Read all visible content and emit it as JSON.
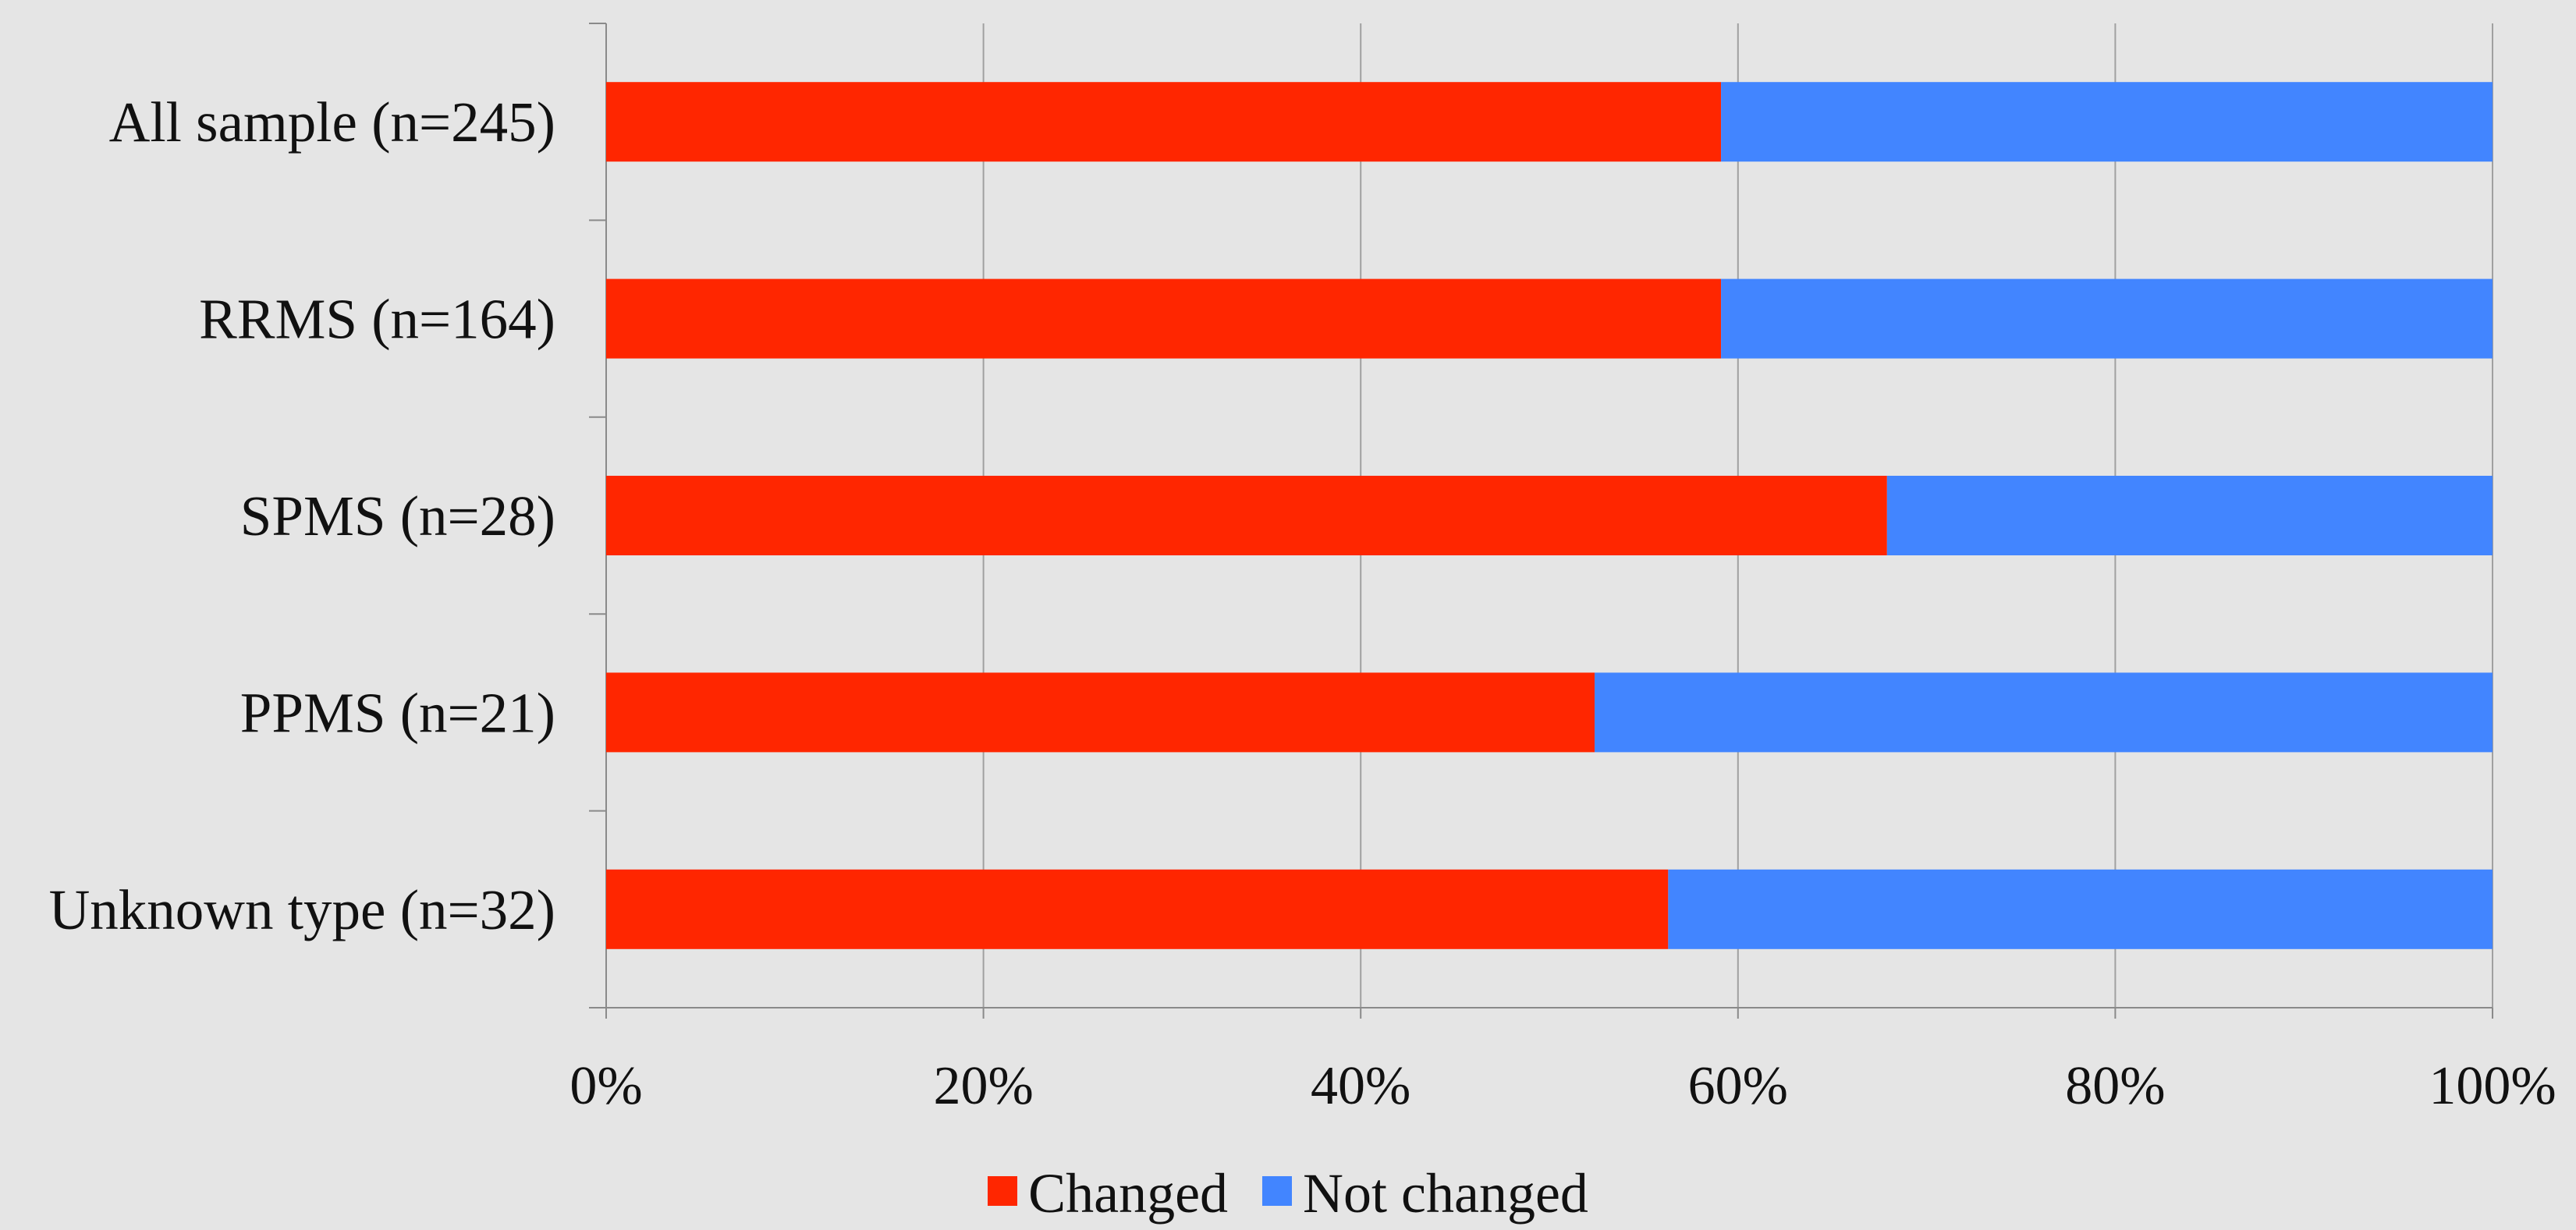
{
  "chart_data": {
    "type": "bar",
    "orientation": "horizontal",
    "stacked": "percent",
    "categories": [
      "All sample (n=245)",
      "RRMS (n=164)",
      "SPMS (n=28)",
      "PPMS (n=21)",
      "Unknown type (n=32)"
    ],
    "series": [
      {
        "name": "Changed",
        "color": "#ff2600",
        "values": [
          59.1,
          59.1,
          67.9,
          52.4,
          56.3
        ]
      },
      {
        "name": "Not changed",
        "color": "#4285ff",
        "values": [
          40.9,
          40.9,
          32.1,
          47.6,
          43.7
        ]
      }
    ],
    "x_ticks": [
      "0%",
      "20%",
      "40%",
      "60%",
      "80%",
      "100%"
    ],
    "xlim": [
      0,
      100
    ],
    "grid": true,
    "legend_position": "bottom"
  }
}
